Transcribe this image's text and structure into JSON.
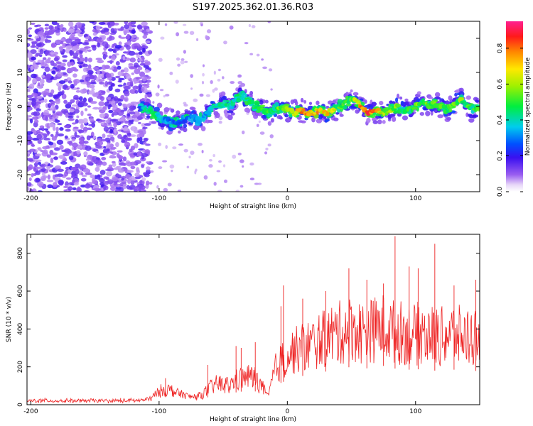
{
  "title": "S197.2025.362.01.36.R03",
  "colors": {
    "trace": "#ee2222",
    "noise": "#8a3ce8",
    "background": "#ffffff"
  },
  "chart_data": [
    {
      "type": "heatmap",
      "title": "S197.2025.362.01.36.R03",
      "xlabel": "Height of straight line (km)",
      "ylabel": "Frequency (Hz)",
      "xlim": [
        -203,
        150
      ],
      "ylim": [
        -25,
        25
      ],
      "xticks": [
        -200,
        -100,
        0,
        100
      ],
      "yticks": [
        -20,
        -10,
        0,
        10,
        20
      ],
      "colorbar": {
        "label": "Normalized spectral amplitude",
        "range": [
          0,
          0.95
        ],
        "ticks": [
          0.0,
          0.2,
          0.4,
          0.6,
          0.8
        ],
        "tick_labels": [
          "0.0",
          "0.2",
          "0.4",
          "0.6",
          "0.8"
        ]
      },
      "noise_region_x": [
        -203,
        -115
      ],
      "ridge": {
        "x": [
          -115,
          -110,
          -105,
          -100,
          -95,
          -90,
          -85,
          -80,
          -75,
          -70,
          -65,
          -60,
          -55,
          -50,
          -45,
          -40,
          -35,
          -30,
          -25,
          -20,
          -15,
          -10,
          -5,
          0,
          5,
          10,
          15,
          20,
          25,
          30,
          35,
          40,
          45,
          50,
          55,
          60,
          65,
          70,
          75,
          80,
          85,
          90,
          95,
          100,
          105,
          110,
          115,
          120,
          125,
          130,
          135,
          140,
          145,
          150
        ],
        "frequency": [
          0,
          -1,
          -2,
          -3,
          -4,
          -4.5,
          -5,
          -4,
          -3,
          -4,
          -3,
          -1,
          0,
          1,
          0,
          2,
          3,
          2,
          0,
          -1,
          -2,
          -1,
          0,
          -1,
          -2,
          -1,
          -2,
          -2,
          -1,
          -2,
          -1,
          0,
          1,
          2,
          1,
          -1,
          -2,
          -1,
          -2,
          -1,
          0,
          -1,
          -1,
          0,
          1,
          0,
          1,
          0,
          -1,
          1,
          2,
          0,
          -1,
          0
        ],
        "peak_amplitude": [
          0.3,
          0.45,
          0.5,
          0.4,
          0.35,
          0.3,
          0.3,
          0.3,
          0.35,
          0.35,
          0.35,
          0.4,
          0.45,
          0.45,
          0.45,
          0.45,
          0.5,
          0.5,
          0.5,
          0.55,
          0.55,
          0.5,
          0.6,
          0.6,
          0.7,
          0.8,
          0.85,
          0.8,
          0.75,
          0.8,
          0.7,
          0.55,
          0.5,
          0.55,
          0.75,
          0.85,
          0.9,
          0.85,
          0.7,
          0.65,
          0.6,
          0.55,
          0.5,
          0.55,
          0.6,
          0.6,
          0.55,
          0.55,
          0.55,
          0.6,
          0.6,
          0.55,
          0.5,
          0.55
        ]
      }
    },
    {
      "type": "line",
      "title": "",
      "xlabel": "Height of straight line (km)",
      "ylabel": "SNR (10 * v/v)",
      "xlim": [
        -203,
        150
      ],
      "ylim": [
        0,
        900
      ],
      "xticks": [
        -200,
        -100,
        0,
        100
      ],
      "yticks": [
        0,
        200,
        400,
        600,
        800
      ],
      "series": [
        {
          "name": "SNR",
          "x": [
            -203,
            -190,
            -180,
            -170,
            -160,
            -150,
            -140,
            -130,
            -120,
            -110,
            -105,
            -100,
            -95,
            -90,
            -85,
            -80,
            -75,
            -70,
            -65,
            -60,
            -55,
            -50,
            -45,
            -40,
            -35,
            -30,
            -25,
            -20,
            -15,
            -10,
            -5,
            0,
            5,
            10,
            15,
            20,
            25,
            30,
            35,
            40,
            45,
            50,
            55,
            60,
            65,
            70,
            75,
            80,
            85,
            90,
            95,
            100,
            105,
            110,
            115,
            120,
            125,
            130,
            135,
            140,
            145,
            150
          ],
          "values": [
            20,
            22,
            20,
            21,
            20,
            22,
            20,
            21,
            22,
            25,
            40,
            70,
            80,
            75,
            60,
            50,
            40,
            45,
            60,
            90,
            110,
            110,
            100,
            130,
            140,
            150,
            140,
            100,
            40,
            180,
            230,
            260,
            280,
            300,
            310,
            320,
            340,
            350,
            370,
            380,
            390,
            400,
            390,
            380,
            390,
            400,
            410,
            390,
            380,
            380,
            370,
            370,
            380,
            370,
            360,
            360,
            370,
            370,
            360,
            360,
            360,
            350
          ]
        }
      ],
      "spikes": {
        "x": [
          -130,
          -95,
          -62,
          -40,
          -36,
          -25,
          -5,
          -3,
          12,
          30,
          48,
          62,
          75,
          84,
          95,
          102,
          115,
          130,
          147,
          150
        ],
        "values": [
          35,
          140,
          210,
          310,
          300,
          330,
          520,
          630,
          560,
          600,
          720,
          660,
          640,
          890,
          730,
          720,
          850,
          630,
          660,
          820
        ]
      }
    }
  ]
}
